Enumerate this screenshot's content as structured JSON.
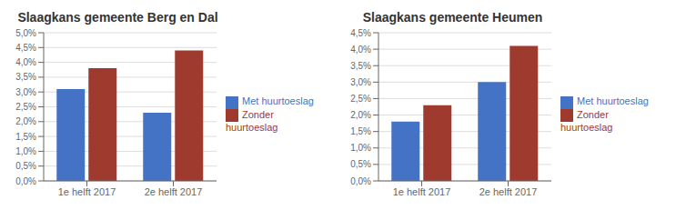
{
  "chart_data": [
    {
      "type": "bar",
      "title": "Slaagkans gemeente Berg en Dal",
      "categories": [
        "1e helft 2017",
        "2e helft 2017"
      ],
      "series": [
        {
          "name": "Met huurtoeslag",
          "color": "#4472C4",
          "values": [
            0.031,
            0.023
          ]
        },
        {
          "name": "Zonder huurtoeslag",
          "color": "#9E3B2E",
          "values": [
            0.038,
            0.044
          ]
        }
      ],
      "ylim": [
        0.0,
        0.05
      ],
      "yticks": [
        {
          "value": 0.0,
          "label": "0,0%"
        },
        {
          "value": 0.005,
          "label": "0,5%"
        },
        {
          "value": 0.01,
          "label": "1,0%"
        },
        {
          "value": 0.015,
          "label": "1,5%"
        },
        {
          "value": 0.02,
          "label": "2,0%"
        },
        {
          "value": 0.025,
          "label": "2,5%"
        },
        {
          "value": 0.03,
          "label": "3,0%"
        },
        {
          "value": 0.035,
          "label": "3,5%"
        },
        {
          "value": 0.04,
          "label": "4,0%"
        },
        {
          "value": 0.045,
          "label": "4,5%"
        },
        {
          "value": 0.05,
          "label": "5,0%"
        }
      ],
      "grid": true,
      "legend": "right"
    },
    {
      "type": "bar",
      "title": "Slaagkans gemeente Heumen",
      "categories": [
        "1e helft 2017",
        "2e helft 2017"
      ],
      "series": [
        {
          "name": "Met huurtoeslag",
          "color": "#4472C4",
          "values": [
            0.018,
            0.03
          ]
        },
        {
          "name": "Zonder huurtoeslag",
          "color": "#9E3B2E",
          "values": [
            0.023,
            0.041
          ]
        }
      ],
      "ylim": [
        0.0,
        0.045
      ],
      "yticks": [
        {
          "value": 0.0,
          "label": "0,0%"
        },
        {
          "value": 0.005,
          "label": "0,5%"
        },
        {
          "value": 0.01,
          "label": "1,0%"
        },
        {
          "value": 0.015,
          "label": "1,5%"
        },
        {
          "value": 0.02,
          "label": "2,0%"
        },
        {
          "value": 0.025,
          "label": "2,5%"
        },
        {
          "value": 0.03,
          "label": "3,0%"
        },
        {
          "value": 0.035,
          "label": "3,5%"
        },
        {
          "value": 0.04,
          "label": "4,0%"
        },
        {
          "value": 0.045,
          "label": "4,5%"
        }
      ],
      "grid": true,
      "legend": "right"
    }
  ]
}
